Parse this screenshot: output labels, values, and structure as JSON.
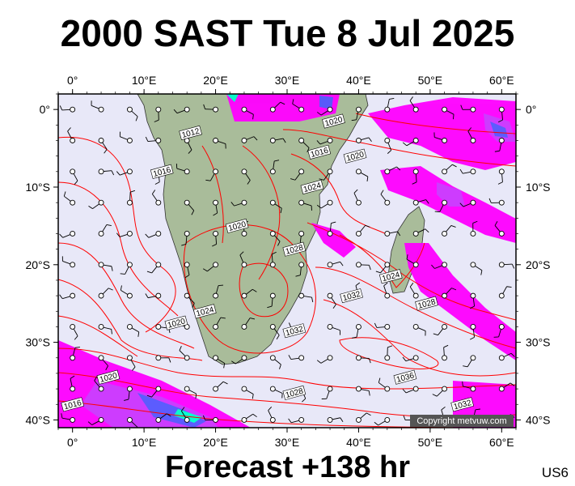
{
  "title": "2000 SAST Tue 8 Jul 2025",
  "footer": "Forecast +138 hr",
  "product_code": "US6",
  "copyright": "Copyright metvuw.com",
  "map": {
    "lon_range": [
      -2,
      62
    ],
    "lat_range": [
      -41,
      2
    ],
    "lon_ticks": [
      {
        "value": 0,
        "label": "0°"
      },
      {
        "value": 10,
        "label": "10°E"
      },
      {
        "value": 20,
        "label": "20°E"
      },
      {
        "value": 30,
        "label": "30°E"
      },
      {
        "value": 40,
        "label": "40°E"
      },
      {
        "value": 50,
        "label": "50°E"
      },
      {
        "value": 60,
        "label": "60°E"
      }
    ],
    "lat_ticks": [
      {
        "value": 0,
        "label": "0°"
      },
      {
        "value": -10,
        "label": "10°S"
      },
      {
        "value": -20,
        "label": "20°S"
      },
      {
        "value": -30,
        "label": "30°S"
      },
      {
        "value": -40,
        "label": "40°S"
      }
    ],
    "isobar_labels": [
      {
        "text": "1012",
        "lon": 16.5,
        "lat": -3
      },
      {
        "text": "1016",
        "lon": 12.5,
        "lat": -8
      },
      {
        "text": "1020",
        "lon": 36.5,
        "lat": -1.5
      },
      {
        "text": "1016",
        "lon": 34.5,
        "lat": -5.5
      },
      {
        "text": "1020",
        "lon": 39.5,
        "lat": -6
      },
      {
        "text": "1024",
        "lon": 33.5,
        "lat": -10
      },
      {
        "text": "1020",
        "lon": 23,
        "lat": -15
      },
      {
        "text": "1028",
        "lon": 31,
        "lat": -18
      },
      {
        "text": "1024",
        "lon": 44.5,
        "lat": -21.5
      },
      {
        "text": "1032",
        "lon": 39,
        "lat": -24
      },
      {
        "text": "1028",
        "lon": 49.5,
        "lat": -25
      },
      {
        "text": "1024",
        "lon": 18.5,
        "lat": -26
      },
      {
        "text": "1020",
        "lon": 14.5,
        "lat": -27.5
      },
      {
        "text": "1032",
        "lon": 31,
        "lat": -28.5
      },
      {
        "text": "1036",
        "lon": 46.5,
        "lat": -34.5
      },
      {
        "text": "1020",
        "lon": 5,
        "lat": -34.5
      },
      {
        "text": "1028",
        "lon": 31,
        "lat": -36.5
      },
      {
        "text": "1032",
        "lon": 54.5,
        "lat": -38
      },
      {
        "text": "1016",
        "lon": 0,
        "lat": -38
      }
    ],
    "colors": {
      "ocean": "#e8e8f8",
      "land": "#a9bc9a",
      "isobar": "#ff0000",
      "rain_light": "#ff00ff",
      "rain_mid": "#cc33ff",
      "rain_heavy": "#5555ff",
      "rain_extreme": "#00ffcc"
    }
  }
}
